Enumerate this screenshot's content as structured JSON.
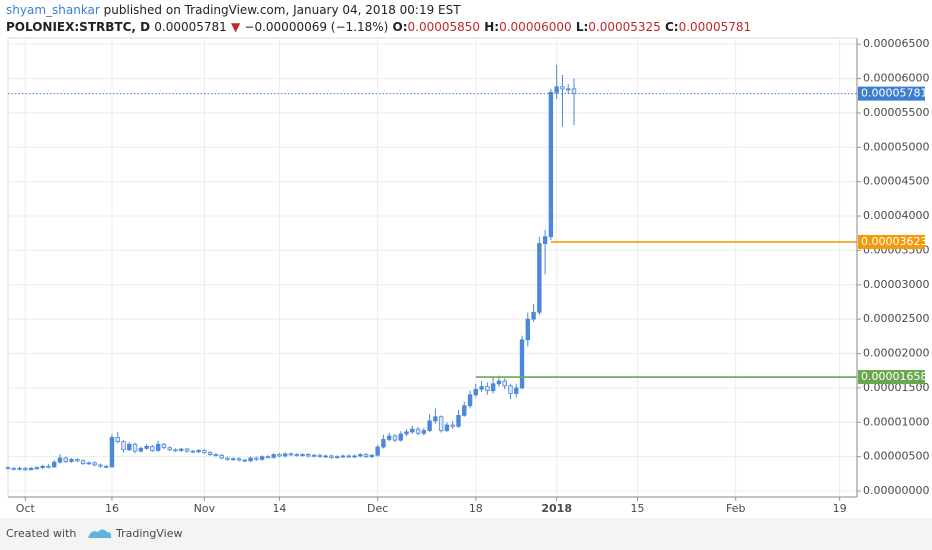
{
  "header": {
    "author": "shyam_shankar",
    "published": "published on TradingView.com, January 04, 2018 00:19 EST",
    "symbol": "POLONIEX:STRBTC, D",
    "last": "0.00005781",
    "arrow": "▼",
    "change": "−0.00000069 (−1.18%)",
    "o_label": "O:",
    "o": "0.00005850",
    "h_label": "H:",
    "h": "0.00006000",
    "l_label": "L:",
    "l": "0.00005325",
    "c_label": "C:",
    "c": "0.00005781"
  },
  "footer": {
    "created": "Created with",
    "brand": "TradingView"
  },
  "chart_data": {
    "type": "candlestick",
    "up_color": "#4a88da",
    "down_color": "#4a88da",
    "grid": true,
    "x": [
      "2017-09-28",
      "2017-09-29",
      "2017-09-30",
      "2017-10-01",
      "2017-10-02",
      "2017-10-03",
      "2017-10-04",
      "2017-10-05",
      "2017-10-06",
      "2017-10-07",
      "2017-10-08",
      "2017-10-09",
      "2017-10-10",
      "2017-10-11",
      "2017-10-12",
      "2017-10-13",
      "2017-10-14",
      "2017-10-15",
      "2017-10-16",
      "2017-10-17",
      "2017-10-18",
      "2017-10-19",
      "2017-10-20",
      "2017-10-21",
      "2017-10-22",
      "2017-10-23",
      "2017-10-24",
      "2017-10-25",
      "2017-10-26",
      "2017-10-27",
      "2017-10-28",
      "2017-10-29",
      "2017-10-30",
      "2017-10-31",
      "2017-11-01",
      "2017-11-02",
      "2017-11-03",
      "2017-11-04",
      "2017-11-05",
      "2017-11-06",
      "2017-11-07",
      "2017-11-08",
      "2017-11-09",
      "2017-11-10",
      "2017-11-11",
      "2017-11-12",
      "2017-11-13",
      "2017-11-14",
      "2017-11-15",
      "2017-11-16",
      "2017-11-17",
      "2017-11-18",
      "2017-11-19",
      "2017-11-20",
      "2017-11-21",
      "2017-11-22",
      "2017-11-23",
      "2017-11-24",
      "2017-11-25",
      "2017-11-26",
      "2017-11-27",
      "2017-11-28",
      "2017-11-29",
      "2017-11-30",
      "2017-12-01",
      "2017-12-02",
      "2017-12-03",
      "2017-12-04",
      "2017-12-05",
      "2017-12-06",
      "2017-12-07",
      "2017-12-08",
      "2017-12-09",
      "2017-12-10",
      "2017-12-11",
      "2017-12-12",
      "2017-12-13",
      "2017-12-14",
      "2017-12-15",
      "2017-12-16",
      "2017-12-17",
      "2017-12-18",
      "2017-12-19",
      "2017-12-20",
      "2017-12-21",
      "2017-12-22",
      "2017-12-23",
      "2017-12-24",
      "2017-12-25",
      "2017-12-26",
      "2017-12-27",
      "2017-12-28",
      "2017-12-29",
      "2017-12-30",
      "2017-12-31",
      "2018-01-01",
      "2018-01-02",
      "2018-01-03",
      "2018-01-04"
    ],
    "open": [
      3.4e-06,
      3.3e-06,
      3.2e-06,
      3.3e-06,
      3.1e-06,
      3.3e-06,
      3.4e-06,
      3.6e-06,
      3.5e-06,
      4.2e-06,
      4.8e-06,
      4.3e-06,
      4.6e-06,
      4.4e-06,
      4e-06,
      4.1e-06,
      3.8e-06,
      3.6e-06,
      3.5e-06,
      7.8e-06,
      7.2e-06,
      6e-06,
      6.8e-06,
      5.8e-06,
      6.2e-06,
      6.5e-06,
      5.9e-06,
      6.8e-06,
      6.3e-06,
      6e-06,
      5.9e-06,
      6.1e-06,
      5.8e-06,
      5.7e-06,
      5.9e-06,
      5.6e-06,
      5.3e-06,
      5.2e-06,
      4.8e-06,
      4.6e-06,
      4.7e-06,
      4.5e-06,
      4.4e-06,
      4.8e-06,
      4.6e-06,
      5e-06,
      4.9e-06,
      5.3e-06,
      5.1e-06,
      5.4e-06,
      5.3e-06,
      5.2e-06,
      5.3e-06,
      5.1e-06,
      5.2e-06,
      5e-06,
      5.1e-06,
      4.9e-06,
      5e-06,
      5.1e-06,
      5e-06,
      5.1e-06,
      5.3e-06,
      5e-06,
      5.2e-06,
      6.4e-06,
      7.5e-06,
      8e-06,
      7.4e-06,
      8.3e-06,
      8.6e-06,
      9e-06,
      8.4e-06,
      8.8e-06,
      1.02e-05,
      1.08e-05,
      8.8e-06,
      9.6e-06,
      9.4e-06,
      1.1e-05,
      1.24e-05,
      1.4e-05,
      1.48e-05,
      1.52e-05,
      1.46e-05,
      1.56e-05,
      1.6e-05,
      1.53e-05,
      1.42e-05,
      1.5e-05,
      2.2e-05,
      2.5e-05,
      2.6e-05,
      3.6e-05,
      3.7e-05,
      5.8e-05,
      5.88e-05,
      5.85e-05,
      5.85e-05
    ],
    "high": [
      3.6e-06,
      3.5e-06,
      3.5e-06,
      3.5e-06,
      3.5e-06,
      3.6e-06,
      3.8e-06,
      3.9e-06,
      4.5e-06,
      5.4e-06,
      5e-06,
      4.8e-06,
      4.8e-06,
      4.6e-06,
      4.3e-06,
      4.3e-06,
      4e-06,
      3.8e-06,
      8.3e-06,
      8.6e-06,
      7.4e-06,
      7.1e-06,
      7e-06,
      6.5e-06,
      6.8e-06,
      6.7e-06,
      7.3e-06,
      7e-06,
      6.5e-06,
      6.2e-06,
      6.3e-06,
      6.3e-06,
      6e-06,
      6.1e-06,
      6.1e-06,
      5.8e-06,
      5.5e-06,
      5.4e-06,
      5e-06,
      4.9e-06,
      4.9e-06,
      4.7e-06,
      5e-06,
      5e-06,
      5.2e-06,
      5.2e-06,
      5.5e-06,
      5.5e-06,
      5.6e-06,
      5.6e-06,
      5.5e-06,
      5.5e-06,
      5.5e-06,
      5.4e-06,
      5.4e-06,
      5.3e-06,
      5.3e-06,
      5.2e-06,
      5.3e-06,
      5.3e-06,
      5.3e-06,
      5.5e-06,
      5.5e-06,
      5.4e-06,
      6.7e-06,
      8.2e-06,
      8.5e-06,
      8.3e-06,
      8.7e-06,
      9e-06,
      9.5e-06,
      9.3e-06,
      9.2e-06,
      1.12e-05,
      1.2e-05,
      1.1e-05,
      1e-05,
      1.02e-05,
      1.18e-05,
      1.3e-05,
      1.46e-05,
      1.56e-05,
      1.6e-05,
      1.58e-05,
      1.66e-05,
      1.68e-05,
      1.64e-05,
      1.56e-05,
      1.56e-05,
      2.26e-05,
      2.6e-05,
      2.72e-05,
      3.7e-05,
      3.8e-05,
      5.85e-05,
      6.2e-05,
      6.05e-05,
      5.92e-05,
      6e-05
    ],
    "low": [
      3.1e-06,
      3e-06,
      3e-06,
      2.9e-06,
      3e-06,
      3.1e-06,
      3.2e-06,
      3.3e-06,
      3.4e-06,
      4e-06,
      4.1e-06,
      4.1e-06,
      4.2e-06,
      3.8e-06,
      3.8e-06,
      3.6e-06,
      3.4e-06,
      3.3e-06,
      3.4e-06,
      6.9e-06,
      5.6e-06,
      5.8e-06,
      5.5e-06,
      5.6e-06,
      6e-06,
      5.7e-06,
      5.7e-06,
      6.1e-06,
      5.8e-06,
      5.7e-06,
      5.7e-06,
      5.6e-06,
      5.5e-06,
      5.5e-06,
      5.4e-06,
      5.1e-06,
      5e-06,
      4.6e-06,
      4.4e-06,
      4.4e-06,
      4.3e-06,
      4.2e-06,
      4.2e-06,
      4.4e-06,
      4.4e-06,
      4.7e-06,
      4.7e-06,
      4.9e-06,
      4.9e-06,
      5.1e-06,
      5e-06,
      5e-06,
      4.9e-06,
      4.9e-06,
      4.8e-06,
      4.8e-06,
      4.7e-06,
      4.7e-06,
      4.8e-06,
      4.8e-06,
      4.8e-06,
      4.9e-06,
      4.8e-06,
      4.8e-06,
      5e-06,
      6.2e-06,
      7.2e-06,
      7.1e-06,
      7.2e-06,
      8e-06,
      8.3e-06,
      8.1e-06,
      8.1e-06,
      8.6e-06,
      9.8e-06,
      8.5e-06,
      8.6e-06,
      9e-06,
      9.2e-06,
      1.08e-05,
      1.2e-05,
      1.36e-05,
      1.44e-05,
      1.4e-05,
      1.42e-05,
      1.52e-05,
      1.48e-05,
      1.34e-05,
      1.36e-05,
      1.48e-05,
      2.1e-05,
      2.46e-05,
      2.56e-05,
      3.15e-05,
      3.65e-05,
      5.7e-05,
      5.3e-05,
      5.78e-05,
      5.325e-05
    ],
    "close": [
      3.3e-06,
      3.2e-06,
      3.3e-06,
      3.1e-06,
      3.3e-06,
      3.4e-06,
      3.6e-06,
      3.5e-06,
      4.2e-06,
      4.8e-06,
      4.3e-06,
      4.6e-06,
      4.4e-06,
      4e-06,
      4.1e-06,
      3.8e-06,
      3.6e-06,
      3.5e-06,
      7.8e-06,
      7.2e-06,
      6e-06,
      6.8e-06,
      5.8e-06,
      6.2e-06,
      6.5e-06,
      5.9e-06,
      6.8e-06,
      6.3e-06,
      6e-06,
      5.9e-06,
      6.1e-06,
      5.8e-06,
      5.7e-06,
      5.9e-06,
      5.6e-06,
      5.3e-06,
      5.2e-06,
      4.8e-06,
      4.6e-06,
      4.7e-06,
      4.5e-06,
      4.4e-06,
      4.8e-06,
      4.6e-06,
      5e-06,
      4.9e-06,
      5.3e-06,
      5.1e-06,
      5.4e-06,
      5.3e-06,
      5.2e-06,
      5.3e-06,
      5.1e-06,
      5.2e-06,
      5e-06,
      5.1e-06,
      4.9e-06,
      5e-06,
      5.1e-06,
      5e-06,
      5.1e-06,
      5.3e-06,
      5e-06,
      5.2e-06,
      6.4e-06,
      7.5e-06,
      8e-06,
      7.4e-06,
      8.3e-06,
      8.6e-06,
      9e-06,
      8.4e-06,
      8.8e-06,
      1.02e-05,
      1.08e-05,
      8.8e-06,
      9.6e-06,
      9.4e-06,
      1.1e-05,
      1.24e-05,
      1.4e-05,
      1.48e-05,
      1.52e-05,
      1.46e-05,
      1.56e-05,
      1.6e-05,
      1.53e-05,
      1.42e-05,
      1.5e-05,
      2.2e-05,
      2.5e-05,
      2.6e-05,
      3.6e-05,
      3.7e-05,
      5.8e-05,
      5.88e-05,
      5.85e-05,
      5.85e-05,
      5.781e-05
    ],
    "xlim": [
      "2017-09-28",
      "2018-02-22"
    ],
    "xticks": [
      {
        "value": "2017-10-01",
        "label": "Oct"
      },
      {
        "value": "2017-10-16",
        "label": "16"
      },
      {
        "value": "2017-11-01",
        "label": "Nov"
      },
      {
        "value": "2017-11-14",
        "label": "14"
      },
      {
        "value": "2017-12-01",
        "label": "Dec"
      },
      {
        "value": "2017-12-18",
        "label": "18"
      },
      {
        "value": "2018-01-01",
        "label": "2018"
      },
      {
        "value": "2018-01-15",
        "label": "15"
      },
      {
        "value": "2018-02-01",
        "label": "Feb"
      },
      {
        "value": "2018-02-19",
        "label": "19"
      }
    ],
    "ylim": [
      -8.7e-07,
      6.59e-05
    ],
    "yticks": [
      {
        "value": 0,
        "label": "0.00000000"
      },
      {
        "value": 5e-06,
        "label": "0.00000500"
      },
      {
        "value": 1e-05,
        "label": "0.00001000"
      },
      {
        "value": 1.5e-05,
        "label": "0.00001500"
      },
      {
        "value": 2e-05,
        "label": "0.00002000"
      },
      {
        "value": 2.5e-05,
        "label": "0.00002500"
      },
      {
        "value": 3e-05,
        "label": "0.00003000"
      },
      {
        "value": 3.5e-05,
        "label": "0.00003500"
      },
      {
        "value": 4e-05,
        "label": "0.00004000"
      },
      {
        "value": 4.5e-05,
        "label": "0.00004500"
      },
      {
        "value": 5e-05,
        "label": "0.00005000"
      },
      {
        "value": 5.5e-05,
        "label": "0.00005500"
      },
      {
        "value": 6e-05,
        "label": "0.00006000"
      },
      {
        "value": 6.5e-05,
        "label": "0.00006500"
      }
    ],
    "price_lines": [
      {
        "value": 5.781e-05,
        "label": "0.00005781",
        "color": "#3c7fd1",
        "style": "dotted",
        "start": "2017-09-28"
      },
      {
        "value": 3.623e-05,
        "label": "0.00003623",
        "color": "#f59a0c",
        "style": "solid",
        "start": "2017-12-31"
      },
      {
        "value": 1.658e-05,
        "label": "0.00001658",
        "color": "#6aa84f",
        "style": "solid",
        "start": "2017-12-18"
      }
    ]
  }
}
